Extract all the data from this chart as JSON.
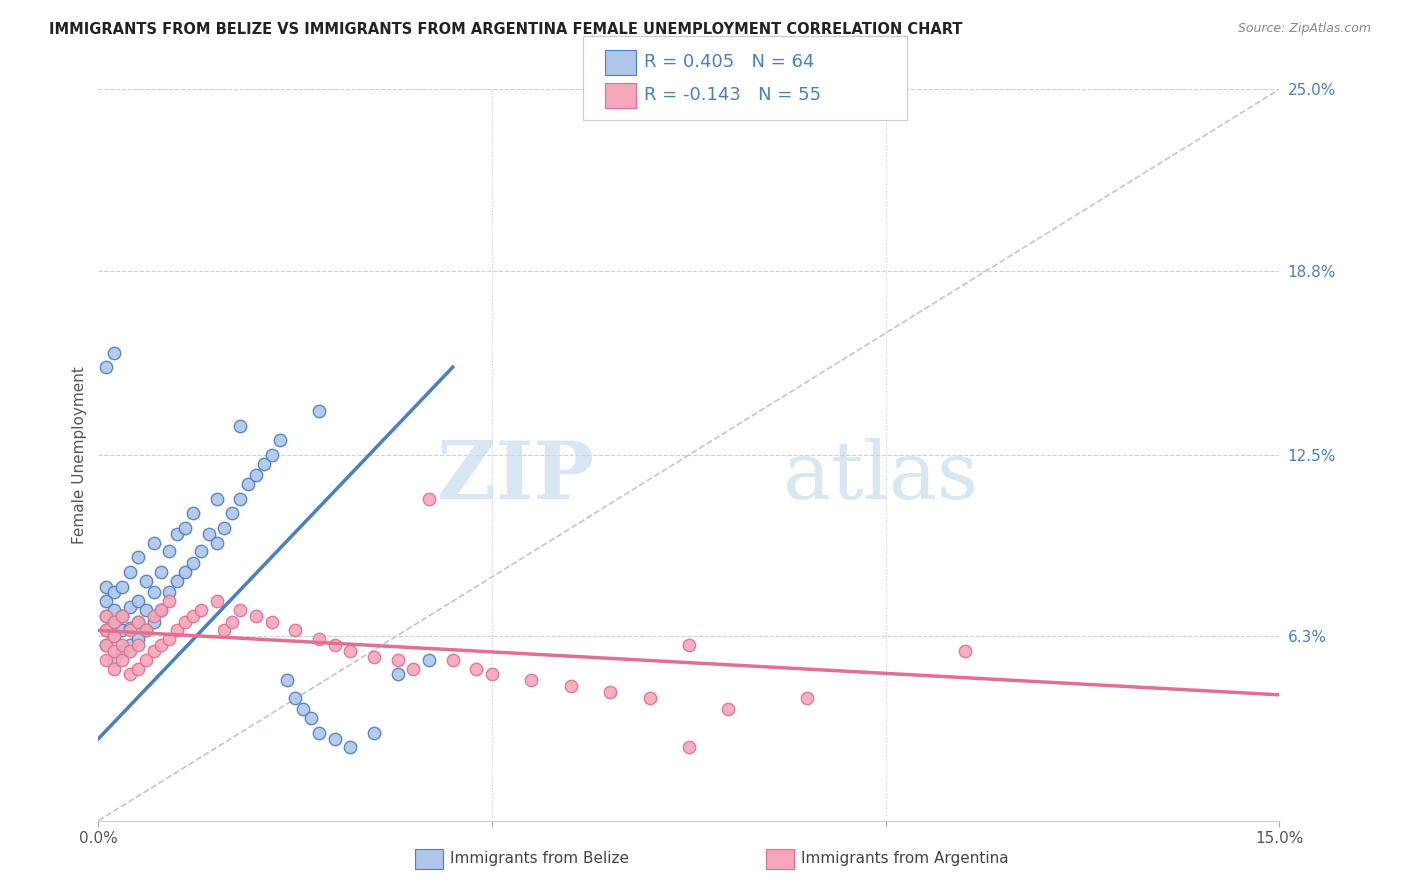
{
  "title": "IMMIGRANTS FROM BELIZE VS IMMIGRANTS FROM ARGENTINA FEMALE UNEMPLOYMENT CORRELATION CHART",
  "source": "Source: ZipAtlas.com",
  "ylabel": "Female Unemployment",
  "x_min": 0.0,
  "x_max": 0.15,
  "y_min": 0.0,
  "y_max": 0.25,
  "y_tick_labels_right": [
    "6.3%",
    "12.5%",
    "18.8%",
    "25.0%"
  ],
  "y_tick_vals_right": [
    0.063,
    0.125,
    0.188,
    0.25
  ],
  "watermark_zip": "ZIP",
  "watermark_atlas": "atlas",
  "color_belize": "#aec6e8",
  "color_argentina": "#f4a7b9",
  "color_belize_line": "#4a7fc1",
  "color_argentina_line": "#e07090",
  "color_trendline_dashed": "#b8c8d8",
  "belize_line_x0": 0.0,
  "belize_line_y0": 0.028,
  "belize_line_x1": 0.045,
  "belize_line_y1": 0.155,
  "argentina_line_x0": 0.0,
  "argentina_line_y0": 0.065,
  "argentina_line_x1": 0.15,
  "argentina_line_y1": 0.043,
  "legend_text1": "R = 0.405   N = 64",
  "legend_text2": "R = -0.143   N = 55",
  "belize_x": [
    0.001,
    0.001,
    0.001,
    0.001,
    0.001,
    0.002,
    0.002,
    0.002,
    0.002,
    0.002,
    0.003,
    0.003,
    0.003,
    0.003,
    0.004,
    0.004,
    0.004,
    0.004,
    0.005,
    0.005,
    0.005,
    0.005,
    0.006,
    0.006,
    0.006,
    0.007,
    0.007,
    0.007,
    0.008,
    0.008,
    0.009,
    0.009,
    0.01,
    0.01,
    0.011,
    0.011,
    0.012,
    0.012,
    0.013,
    0.014,
    0.015,
    0.015,
    0.016,
    0.017,
    0.018,
    0.019,
    0.02,
    0.021,
    0.022,
    0.023,
    0.024,
    0.025,
    0.026,
    0.027,
    0.028,
    0.03,
    0.032,
    0.018,
    0.028,
    0.035,
    0.001,
    0.002,
    0.038,
    0.042
  ],
  "belize_y": [
    0.06,
    0.065,
    0.07,
    0.075,
    0.08,
    0.055,
    0.063,
    0.068,
    0.072,
    0.078,
    0.058,
    0.065,
    0.07,
    0.08,
    0.06,
    0.066,
    0.073,
    0.085,
    0.062,
    0.068,
    0.075,
    0.09,
    0.065,
    0.072,
    0.082,
    0.068,
    0.078,
    0.095,
    0.072,
    0.085,
    0.078,
    0.092,
    0.082,
    0.098,
    0.085,
    0.1,
    0.088,
    0.105,
    0.092,
    0.098,
    0.095,
    0.11,
    0.1,
    0.105,
    0.11,
    0.115,
    0.118,
    0.122,
    0.125,
    0.13,
    0.048,
    0.042,
    0.038,
    0.035,
    0.03,
    0.028,
    0.025,
    0.135,
    0.14,
    0.03,
    0.155,
    0.16,
    0.05,
    0.055
  ],
  "argentina_x": [
    0.001,
    0.001,
    0.001,
    0.001,
    0.002,
    0.002,
    0.002,
    0.002,
    0.003,
    0.003,
    0.003,
    0.004,
    0.004,
    0.004,
    0.005,
    0.005,
    0.005,
    0.006,
    0.006,
    0.007,
    0.007,
    0.008,
    0.008,
    0.009,
    0.009,
    0.01,
    0.011,
    0.012,
    0.013,
    0.015,
    0.016,
    0.017,
    0.018,
    0.02,
    0.022,
    0.025,
    0.028,
    0.03,
    0.032,
    0.035,
    0.038,
    0.04,
    0.042,
    0.045,
    0.048,
    0.05,
    0.055,
    0.06,
    0.065,
    0.07,
    0.075,
    0.08,
    0.09,
    0.11,
    0.075
  ],
  "argentina_y": [
    0.055,
    0.06,
    0.065,
    0.07,
    0.052,
    0.058,
    0.063,
    0.068,
    0.055,
    0.06,
    0.07,
    0.05,
    0.058,
    0.065,
    0.052,
    0.06,
    0.068,
    0.055,
    0.065,
    0.058,
    0.07,
    0.06,
    0.072,
    0.062,
    0.075,
    0.065,
    0.068,
    0.07,
    0.072,
    0.075,
    0.065,
    0.068,
    0.072,
    0.07,
    0.068,
    0.065,
    0.062,
    0.06,
    0.058,
    0.056,
    0.055,
    0.052,
    0.11,
    0.055,
    0.052,
    0.05,
    0.048,
    0.046,
    0.044,
    0.042,
    0.06,
    0.038,
    0.042,
    0.058,
    0.025
  ]
}
